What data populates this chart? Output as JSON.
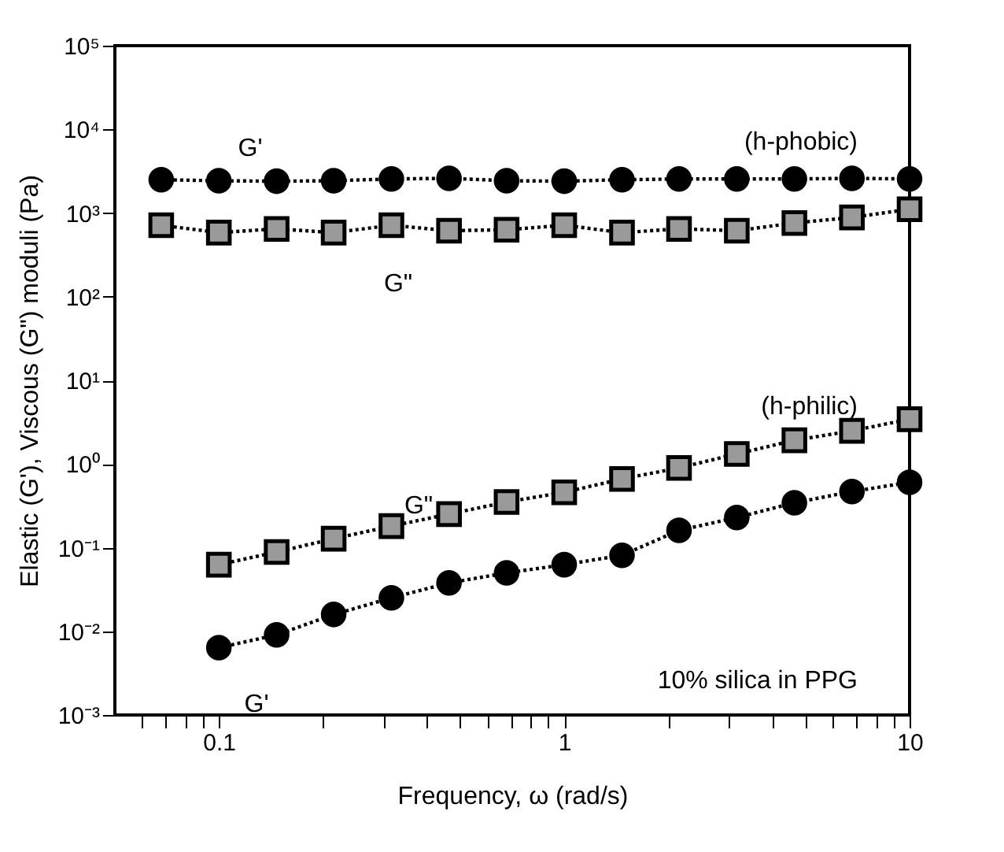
{
  "chart_data": {
    "type": "line",
    "xlabel": "Frequency, ω (rad/s)",
    "ylabel": "Elastic (G'), Viscous (G\") moduli (Pa)",
    "log": "xy",
    "xlim": [
      0.05,
      10
    ],
    "ylim": [
      0.001,
      100000
    ],
    "xticks": [
      {
        "value": 0.06,
        "label": null
      },
      {
        "value": 0.07,
        "label": null
      },
      {
        "value": 0.08,
        "label": null
      },
      {
        "value": 0.09,
        "label": null
      },
      0.1,
      {
        "value": 0.2,
        "label": null
      },
      {
        "value": 0.3,
        "label": null
      },
      {
        "value": 0.4,
        "label": null
      },
      {
        "value": 0.5,
        "label": null
      },
      {
        "value": 0.6,
        "label": null
      },
      {
        "value": 0.7,
        "label": null
      },
      {
        "value": 0.8,
        "label": null
      },
      {
        "value": 0.9,
        "label": null
      },
      1,
      {
        "value": 2,
        "label": null
      },
      {
        "value": 3,
        "label": null
      },
      {
        "value": 4,
        "label": null
      },
      {
        "value": 5,
        "label": null
      },
      {
        "value": 6,
        "label": null
      },
      {
        "value": 7,
        "label": null
      },
      {
        "value": 8,
        "label": null
      },
      {
        "value": 9,
        "label": null
      },
      10
    ],
    "yticks": [
      {
        "value": 0.001,
        "label": "10⁻³"
      },
      {
        "value": 0.01,
        "label": "10⁻²"
      },
      {
        "value": 0.1,
        "label": "10⁻¹"
      },
      {
        "value": 1,
        "label": "10⁰"
      },
      {
        "value": 10,
        "label": "10¹"
      },
      {
        "value": 100,
        "label": "10²"
      },
      {
        "value": 1000,
        "label": "10³"
      },
      {
        "value": 10000,
        "label": "10⁴"
      },
      {
        "value": 100000,
        "label": "10⁵"
      }
    ],
    "grid": false,
    "line_style": "dotted",
    "series": [
      {
        "color": "#000000",
        "marker": "circle",
        "x": [
          0.0681,
          0.1,
          0.147,
          0.215,
          0.316,
          0.464,
          0.681,
          1,
          1.47,
          2.15,
          3.16,
          4.64,
          6.81,
          10
        ],
        "values": [
          2500,
          2430,
          2400,
          2430,
          2550,
          2600,
          2430,
          2400,
          2500,
          2550,
          2550,
          2550,
          2600,
          2550
        ]
      },
      {
        "color": "#000000",
        "marker": "square",
        "x": [
          0.0681,
          0.1,
          0.147,
          0.215,
          0.316,
          0.464,
          0.681,
          1,
          1.47,
          2.15,
          3.16,
          4.64,
          6.81,
          10
        ],
        "values": [
          714,
          583,
          646,
          583,
          714,
          615,
          630,
          714,
          583,
          646,
          615,
          760,
          885,
          1110
        ]
      },
      {
        "color": "#000000",
        "marker": "square",
        "x": [
          0.1,
          0.147,
          0.215,
          0.316,
          0.464,
          0.681,
          1,
          1.47,
          2.15,
          3.16,
          4.64,
          6.81,
          10
        ],
        "values": [
          0.0626,
          0.0887,
          0.128,
          0.181,
          0.252,
          0.351,
          0.459,
          0.662,
          0.899,
          1.32,
          1.92,
          2.49,
          3.43
        ]
      },
      {
        "color": "#000000",
        "marker": "circle",
        "x": [
          0.1,
          0.147,
          0.215,
          0.316,
          0.464,
          0.681,
          1,
          1.47,
          2.15,
          3.16,
          4.64,
          6.81,
          10
        ],
        "values": [
          0.00638,
          0.00906,
          0.0159,
          0.0251,
          0.0379,
          0.0499,
          0.0626,
          0.081,
          0.161,
          0.229,
          0.344,
          0.468,
          0.605
        ]
      }
    ],
    "annotations": [
      "G'",
      "G\"",
      "G\"",
      "G'",
      "(h-phobic)",
      "(h-philic)",
      "10% silica in PPG"
    ]
  }
}
